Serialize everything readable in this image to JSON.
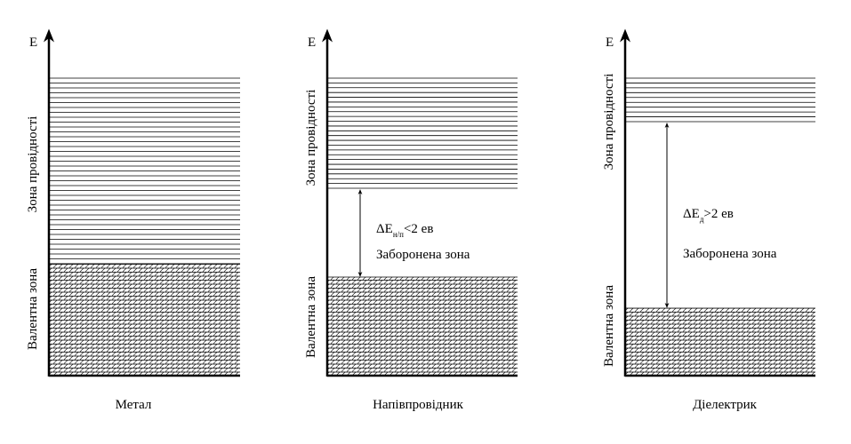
{
  "panels": [
    {
      "axis_label": "E",
      "conduction_label": "Зона провідності",
      "valence_label": "Валентна зона",
      "caption": "Метал"
    },
    {
      "axis_label": "E",
      "conduction_label": "Зона провідності",
      "valence_label": "Валентна зона",
      "gap_symbol": "ΔE",
      "gap_subscript": "н/п",
      "gap_value": "<2 ев",
      "gap_label": "Заборонена зона",
      "caption": "Напівпровідник"
    },
    {
      "axis_label": "E",
      "conduction_label": "Зона провідності",
      "valence_label": "Валентна зона",
      "gap_symbol": "ΔE",
      "gap_subscript": "д",
      "gap_value": ">2 ев",
      "gap_label": "Заборонена зона",
      "caption": "Діелектрик"
    }
  ]
}
